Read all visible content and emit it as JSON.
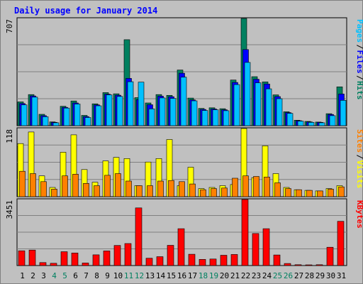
{
  "chart_data": {
    "type": "bar",
    "title": "Daily usage for January 2014",
    "categories": [
      "1",
      "2",
      "3",
      "4",
      "5",
      "6",
      "7",
      "8",
      "9",
      "10",
      "11",
      "12",
      "13",
      "14",
      "15",
      "16",
      "17",
      "18",
      "19",
      "20",
      "21",
      "22",
      "23",
      "24",
      "25",
      "26",
      "27",
      "28",
      "29",
      "30",
      "31"
    ],
    "weekend_days": [
      "4",
      "5",
      "11",
      "12",
      "18",
      "19",
      "25",
      "26"
    ],
    "panels": [
      {
        "id": "top",
        "max_label": "707",
        "ylim": [
          0,
          707
        ],
        "labels": [
          {
            "text": "Pages",
            "color": "#00c0ff"
          },
          {
            "text": "Files",
            "color": "#0000ff"
          },
          {
            "text": "Hits",
            "color": "#008060"
          }
        ],
        "series": [
          {
            "name": "Hits",
            "color": "#008060",
            "values": [
              157,
              205,
              75,
              25,
              128,
              163,
              68,
              144,
              218,
              210,
              567,
              185,
              150,
              205,
              200,
              367,
              182,
              114,
              118,
              112,
              301,
              707,
              323,
              289,
              203,
              92,
              36,
              28,
              24,
              79,
              256
            ]
          },
          {
            "name": "Files",
            "color": "#0000ff",
            "values": [
              146,
              196,
              66,
              22,
              121,
              150,
              60,
              137,
              208,
              201,
              312,
              172,
              138,
              195,
              191,
              346,
              170,
              107,
              110,
              105,
              285,
              502,
              306,
              275,
              192,
              86,
              33,
              25,
              22,
              74,
              209
            ]
          },
          {
            "name": "Pages",
            "color": "#00c0ff",
            "values": [
              137,
              188,
              59,
              19,
              116,
              143,
              54,
              131,
              203,
              193,
              290,
              287,
              111,
              183,
              180,
              320,
              164,
              100,
              105,
              99,
              271,
              417,
              283,
              243,
              178,
              81,
              30,
              22,
              19,
              66,
              167
            ]
          }
        ]
      },
      {
        "id": "middle",
        "max_label": "118",
        "ylim": [
          0,
          118
        ],
        "labels": [
          {
            "text": "Sites",
            "color": "#ff8000"
          },
          {
            "text": "Visits",
            "color": "#ffff00"
          }
        ],
        "series": [
          {
            "name": "Visits",
            "color": "#ffff00",
            "values": [
              92,
              112,
              36,
              16,
              77,
              107,
              47,
              25,
              62,
              68,
              66,
              19,
              60,
              66,
              99,
              19,
              51,
              14,
              16,
              19,
              21,
              118,
              33,
              88,
              40,
              16,
              12,
              11,
              10,
              14,
              19
            ]
          },
          {
            "name": "Sites",
            "color": "#ff8000",
            "values": [
              44,
              40,
              26,
              13,
              36,
              39,
              23,
              19,
              37,
              40,
              27,
              19,
              19,
              27,
              28,
              26,
              22,
              12,
              14,
              15,
              32,
              36,
              35,
              34,
              24,
              14,
              12,
              11,
              10,
              13,
              17
            ]
          }
        ]
      },
      {
        "id": "bottom",
        "max_label": "3451",
        "ylim": [
          0,
          3451
        ],
        "labels": [
          {
            "text": "KBytes",
            "color": "#ff0000"
          }
        ],
        "series": [
          {
            "name": "KBytes",
            "color": "#ff0000",
            "values": [
              770,
              808,
              154,
              119,
              723,
              656,
              135,
              562,
              766,
              1049,
              1152,
              3012,
              381,
              462,
              1056,
              1925,
              591,
              323,
              340,
              537,
              580,
              3451,
              1673,
              1925,
              554,
              108,
              45,
              36,
              45,
              958,
              2312
            ]
          }
        ]
      }
    ]
  }
}
